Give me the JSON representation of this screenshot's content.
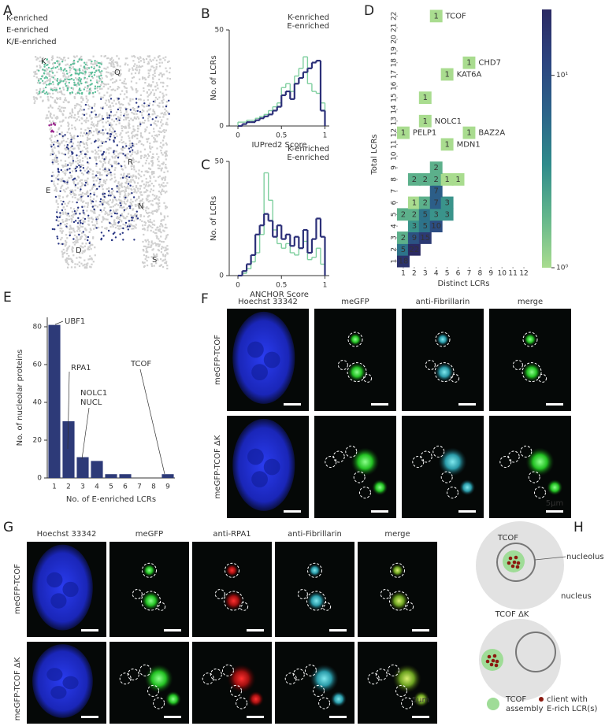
{
  "panel_labels": [
    "A",
    "B",
    "C",
    "D",
    "E",
    "F",
    "G",
    "H"
  ],
  "embedding": {
    "legend": [
      {
        "name": "K-enriched",
        "color": "#5cbf9a"
      },
      {
        "name": "E-enriched",
        "color": "#283583"
      },
      {
        "name": "K/E-enriched",
        "color": "#9b2a8f"
      }
    ],
    "regions": [
      "K",
      "Q",
      "R",
      "E",
      "N",
      "D",
      "S"
    ]
  },
  "chart_data": [
    {
      "type": "histogram",
      "xlabel": "IUPred2 Score",
      "ylabel": "No. of LCRs",
      "bins": [
        0,
        0.05,
        0.1,
        0.15,
        0.2,
        0.25,
        0.3,
        0.35,
        0.4,
        0.45,
        0.5,
        0.55,
        0.6,
        0.65,
        0.7,
        0.75,
        0.8,
        0.85,
        0.9,
        0.95,
        1
      ],
      "series": [
        {
          "name": "K-enriched",
          "color": "#7fcf9f",
          "values": [
            2,
            2,
            3,
            3,
            4,
            5,
            6,
            8,
            10,
            12,
            20,
            22,
            18,
            26,
            30,
            36,
            22,
            18,
            17,
            12
          ]
        },
        {
          "name": "E-enriched",
          "color": "#2b2f78",
          "values": [
            0,
            1,
            2,
            2,
            3,
            4,
            5,
            6,
            8,
            10,
            16,
            18,
            14,
            22,
            25,
            28,
            30,
            33,
            34,
            8
          ]
        }
      ],
      "xlim": [
        -0.1,
        1.05
      ],
      "ylim": [
        0,
        50
      ],
      "xticks": [
        0,
        0.5,
        1
      ],
      "yticks": [
        0,
        50
      ],
      "legend": "upper right"
    },
    {
      "type": "histogram",
      "xlabel": "ANCHOR Score",
      "ylabel": "No. of LCRs",
      "bins": [
        0,
        0.05,
        0.1,
        0.15,
        0.2,
        0.25,
        0.3,
        0.35,
        0.4,
        0.45,
        0.5,
        0.55,
        0.6,
        0.65,
        0.7,
        0.75,
        0.8,
        0.85,
        0.9,
        0.95,
        1
      ],
      "series": [
        {
          "name": "K-enriched",
          "color": "#7fcf9f",
          "values": [
            0,
            1,
            3,
            6,
            10,
            18,
            45,
            33,
            20,
            14,
            12,
            14,
            10,
            9,
            12,
            15,
            7,
            8,
            12,
            5
          ]
        },
        {
          "name": "E-enriched",
          "color": "#2b2f78",
          "values": [
            0,
            2,
            5,
            9,
            18,
            22,
            27,
            24,
            17,
            22,
            16,
            18,
            13,
            17,
            12,
            20,
            10,
            16,
            25,
            17
          ]
        }
      ],
      "xlim": [
        -0.1,
        1.05
      ],
      "ylim": [
        0,
        50
      ],
      "xticks": [
        0,
        0.5,
        1
      ],
      "yticks": [
        0,
        50
      ],
      "legend": "upper right"
    },
    {
      "type": "heatmap",
      "xlabel": "Distinct LCRs",
      "ylabel": "Total LCRs",
      "xlim": [
        0.5,
        12.5
      ],
      "ylim": [
        0.5,
        22.5
      ],
      "xticks": [
        1,
        2,
        3,
        4,
        5,
        6,
        7,
        8,
        9,
        10,
        11,
        12
      ],
      "yticks": [
        1,
        2,
        3,
        4,
        5,
        6,
        7,
        8,
        9,
        10,
        11,
        12,
        13,
        14,
        15,
        16,
        17,
        18,
        19,
        20,
        21,
        22
      ],
      "cells": [
        {
          "x": 1,
          "y": 1,
          "value": 18
        },
        {
          "x": 1,
          "y": 2,
          "value": 5
        },
        {
          "x": 2,
          "y": 2,
          "value": 22
        },
        {
          "x": 1,
          "y": 3,
          "value": 2
        },
        {
          "x": 2,
          "y": 3,
          "value": 9
        },
        {
          "x": 3,
          "y": 3,
          "value": 15
        },
        {
          "x": 2,
          "y": 4,
          "value": 3
        },
        {
          "x": 3,
          "y": 4,
          "value": 5
        },
        {
          "x": 4,
          "y": 4,
          "value": 10
        },
        {
          "x": 1,
          "y": 5,
          "value": 2
        },
        {
          "x": 2,
          "y": 5,
          "value": 2
        },
        {
          "x": 3,
          "y": 5,
          "value": 5
        },
        {
          "x": 4,
          "y": 5,
          "value": 3
        },
        {
          "x": 5,
          "y": 5,
          "value": 3
        },
        {
          "x": 2,
          "y": 6,
          "value": 1
        },
        {
          "x": 3,
          "y": 6,
          "value": 2
        },
        {
          "x": 4,
          "y": 6,
          "value": 7
        },
        {
          "x": 5,
          "y": 6,
          "value": 3
        },
        {
          "x": 4,
          "y": 7,
          "value": 7
        },
        {
          "x": 2,
          "y": 8,
          "value": 2
        },
        {
          "x": 3,
          "y": 8,
          "value": 2
        },
        {
          "x": 4,
          "y": 8,
          "value": 2
        },
        {
          "x": 5,
          "y": 8,
          "value": 1
        },
        {
          "x": 6,
          "y": 8,
          "value": 1
        },
        {
          "x": 4,
          "y": 9,
          "value": 2
        },
        {
          "x": 5,
          "y": 11,
          "value": 1,
          "protein": "MDN1"
        },
        {
          "x": 1,
          "y": 12,
          "value": 1,
          "protein": "PELP1"
        },
        {
          "x": 7,
          "y": 12,
          "value": 1,
          "protein": "BAZ2A"
        },
        {
          "x": 3,
          "y": 13,
          "value": 1,
          "protein": "NOLC1"
        },
        {
          "x": 3,
          "y": 15,
          "value": 1
        },
        {
          "x": 5,
          "y": 17,
          "value": 1,
          "protein": "KAT6A"
        },
        {
          "x": 7,
          "y": 18,
          "value": 1,
          "protein": "CHD7"
        },
        {
          "x": 4,
          "y": 22,
          "value": 1,
          "protein": "TCOF"
        }
      ],
      "colorbar": {
        "log": true,
        "clim": [
          1,
          22
        ],
        "ticks": [
          {
            "value": 1,
            "label": "10⁰"
          },
          {
            "value": 10,
            "label": "10¹"
          }
        ],
        "colors": [
          "#a9dc8f",
          "#62b58b",
          "#2f8b8b",
          "#2c6389",
          "#2c447f",
          "#2b2a63"
        ]
      }
    },
    {
      "type": "bar",
      "xlabel": "No. of E-enriched LCRs",
      "ylabel": "No. of nucleolar proteins",
      "categories": [
        "1",
        "2",
        "3",
        "4",
        "5",
        "6",
        "7",
        "8",
        "9"
      ],
      "values": [
        81,
        30,
        11,
        9,
        2,
        2,
        0,
        0,
        2
      ],
      "color": "#2d3a78",
      "ylim": [
        0,
        85
      ],
      "yticks": [
        0,
        20,
        40,
        60,
        80
      ],
      "annotations": [
        "UBF1",
        "RPA1",
        "NOLC1",
        "NUCL",
        "TCOF"
      ]
    }
  ],
  "microscopy": {
    "F": {
      "columns": [
        "Hoechst 33342",
        "meGFP",
        "anti-Fibrillarin",
        "merge"
      ],
      "rows": [
        "meGFP-TCOF",
        "meGFP-TCOF ΔK"
      ],
      "scale_bar": "5μm"
    },
    "G": {
      "columns": [
        "Hoechst 33342",
        "meGFP",
        "anti-RPA1",
        "anti-Fibrillarin",
        "merge"
      ],
      "rows": [
        "meGFP-TCOF",
        "meGFP-TCOF ΔK"
      ],
      "scale_bar": "5μm"
    }
  },
  "model": {
    "states": [
      "TCOF",
      "TCOF ΔK"
    ],
    "labels": [
      "nucleolus",
      "nucleus"
    ],
    "legend": [
      [
        "TCOF",
        "assembly"
      ],
      [
        "client with",
        "E-rich LCR(s)"
      ]
    ]
  }
}
